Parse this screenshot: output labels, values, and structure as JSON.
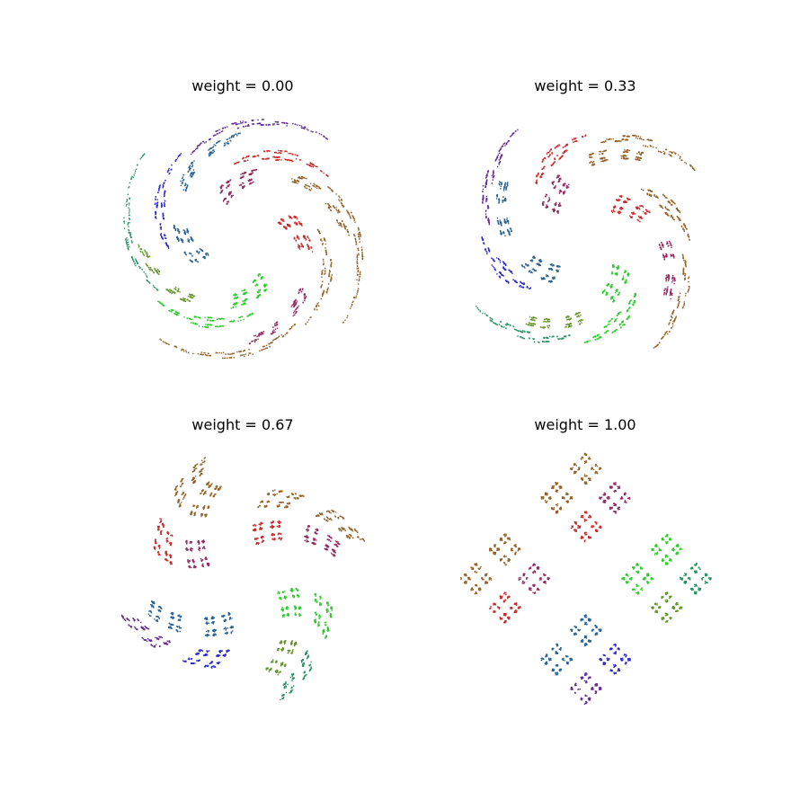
{
  "figure": {
    "background": "#ffffff"
  },
  "chart_data": [
    {
      "type": "scatter",
      "title": "weight = 0.00",
      "weight": 0.0,
      "axes_visible": false,
      "grid": false,
      "colors": [
        "#cc2a2a",
        "#2acc2a",
        "#2a2acc"
      ],
      "description_of_marks": "fractal point cloud (weighted blend of a swirl map and an affine IFS), colored by transform"
    },
    {
      "type": "scatter",
      "title": "weight = 0.33",
      "weight": 0.33,
      "axes_visible": false,
      "grid": false,
      "colors": [
        "#cc2a2a",
        "#2acc2a",
        "#2a2acc"
      ]
    },
    {
      "type": "scatter",
      "title": "weight = 0.67",
      "weight": 0.67,
      "axes_visible": false,
      "grid": false,
      "colors": [
        "#cc2a2a",
        "#2acc2a",
        "#2a2acc"
      ]
    },
    {
      "type": "scatter",
      "title": "weight = 1.00",
      "weight": 1.0,
      "axes_visible": false,
      "grid": false,
      "colors": [
        "#cc2a2a",
        "#2acc2a",
        "#2a2acc"
      ]
    }
  ]
}
